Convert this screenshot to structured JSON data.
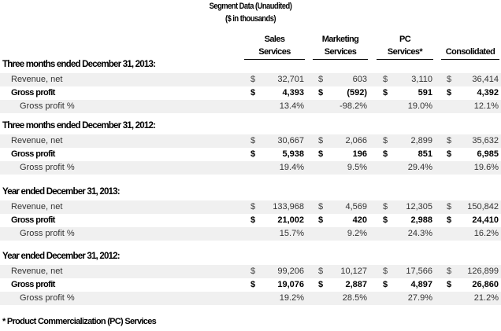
{
  "title": "Segment Data (Unaudited)",
  "subtitle": "($ in thousands)",
  "columns": [
    "Sales Services",
    "Marketing Services",
    "PC Services*",
    "Consolidated"
  ],
  "column_lines": [
    [
      "Sales",
      "Services"
    ],
    [
      "Marketing",
      "Services"
    ],
    [
      "PC",
      "Services*"
    ],
    [
      "",
      "Consolidated"
    ]
  ],
  "sections": [
    {
      "title": "Three months ended December 31, 2013:",
      "rows": [
        {
          "label": "Revenue, net",
          "type": "revenue",
          "currency": "$",
          "values": [
            "32,701",
            "603",
            "3,110",
            "36,414"
          ]
        },
        {
          "label": "Gross profit",
          "type": "profit",
          "currency": "$",
          "values": [
            "4,393",
            "(592)",
            "591",
            "4,392"
          ]
        },
        {
          "label": "Gross profit %",
          "type": "pct",
          "currency": "",
          "values": [
            "13.4%",
            "-98.2%",
            "19.0%",
            "12.1%"
          ]
        }
      ]
    },
    {
      "title": "Three months ended December 31, 2012:",
      "rows": [
        {
          "label": "Revenue, net",
          "type": "revenue",
          "currency": "$",
          "values": [
            "30,667",
            "2,066",
            "2,899",
            "35,632"
          ]
        },
        {
          "label": "Gross profit",
          "type": "profit",
          "currency": "$",
          "values": [
            "5,938",
            "196",
            "851",
            "6,985"
          ]
        },
        {
          "label": "Gross profit %",
          "type": "pct",
          "currency": "",
          "values": [
            "19.4%",
            "9.5%",
            "29.4%",
            "19.6%"
          ]
        }
      ]
    },
    {
      "title": "Year ended December 31, 2013:",
      "rows": [
        {
          "label": "Revenue, net",
          "type": "revenue",
          "currency": "$",
          "values": [
            "133,968",
            "4,569",
            "12,305",
            "150,842"
          ]
        },
        {
          "label": "Gross profit",
          "type": "profit",
          "currency": "$",
          "values": [
            "21,002",
            "420",
            "2,988",
            "24,410"
          ]
        },
        {
          "label": "Gross profit %",
          "type": "pct",
          "currency": "",
          "values": [
            "15.7%",
            "9.2%",
            "24.3%",
            "16.2%"
          ]
        }
      ]
    },
    {
      "title": "Year ended December 31, 2012:",
      "rows": [
        {
          "label": "Revenue, net",
          "type": "revenue",
          "currency": "$",
          "values": [
            "99,206",
            "10,127",
            "17,566",
            "126,899"
          ]
        },
        {
          "label": "Gross profit",
          "type": "profit",
          "currency": "$",
          "values": [
            "19,076",
            "2,887",
            "4,897",
            "26,860"
          ]
        },
        {
          "label": "Gross profit %",
          "type": "pct",
          "currency": "",
          "values": [
            "19.2%",
            "28.5%",
            "27.9%",
            "21.2%"
          ]
        }
      ]
    }
  ],
  "footnote": "* Product Commercialization (PC) Services"
}
